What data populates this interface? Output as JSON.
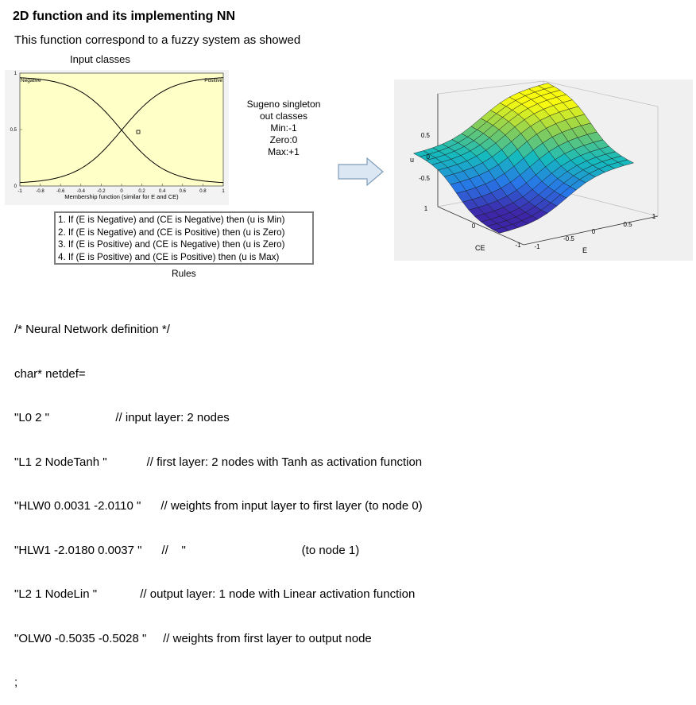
{
  "header": {
    "title": "2D function and its implementing NN",
    "subtitle": "This function correspond to a fuzzy system as showed"
  },
  "membership_plot": {
    "caption": "Input classes",
    "xlabel": "Membership function (similar for E and CE)",
    "negative_label": "Negative",
    "positive_label": "Positive",
    "x_ticks": [
      "-1",
      "-0.8",
      "-0.6",
      "-0.4",
      "-0.2",
      "0",
      "0.2",
      "0.4",
      "0.6",
      "0.8",
      "1"
    ],
    "y_ticks": [
      "0",
      "0.5",
      "1"
    ],
    "plot_background": "#ffffc8"
  },
  "sugeno": {
    "lines": [
      "Sugeno singleton",
      "out classes",
      "Min:-1",
      "Zero:0",
      "Max:+1"
    ]
  },
  "rules": {
    "items": [
      "1. If (E is Negative) and (CE is Negative) then (u is Min)",
      "2. If (E is Negative) and (CE is Positive) then (u is Zero)",
      "3. If (E is Positive) and (CE is Negative) then (u is Zero)",
      "4. If (E is Positive) and (CE is Positive) then (u is Max)"
    ],
    "caption": "Rules"
  },
  "surface_plot": {
    "z_ticks": [
      "0.5",
      "0",
      "-0.5"
    ],
    "z_label": "u",
    "ce_ticks": [
      "1",
      "0",
      "-1"
    ],
    "ce_label": "CE",
    "e_ticks": [
      "-1",
      "-0.5",
      "0",
      "0.5",
      "1"
    ],
    "e_label": "E"
  },
  "code": {
    "lines": [
      "/* Neural Network definition */",
      "char* netdef=",
      "\"L0 2 \"                    // input layer: 2 nodes",
      "\"L1 2 NodeTanh \"            // first layer: 2 nodes with Tanh as activation function",
      "\"HLW0 0.0031 -2.0110 \"      // weights from input layer to first layer (to node 0)",
      "\"HLW1 -2.0180 0.0037 \"      //    \"                                   (to node 1)",
      "\"L2 1 NodeLin \"             // output layer: 1 node with Linear activation function",
      "\"OLW0 -0.5035 -0.5028 \"     // weights from first layer to output node",
      ";"
    ]
  }
}
